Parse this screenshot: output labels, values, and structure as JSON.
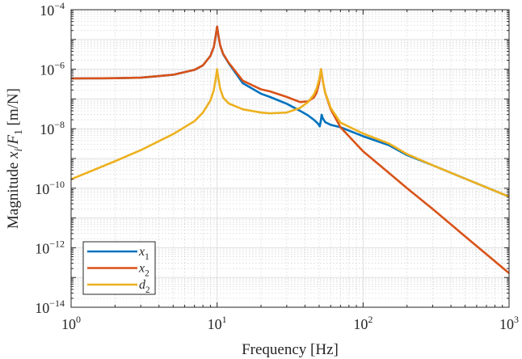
{
  "chart_data": {
    "type": "line",
    "title": "",
    "xlabel": "Frequency [Hz]",
    "ylabel": "Magnitude x_i/F_1 [m/N]",
    "xscale": "log",
    "yscale": "log",
    "xlim": [
      1,
      1000
    ],
    "ylim": [
      1e-14,
      0.0001
    ],
    "grid": "major and minor",
    "legend_position": "bottom-left",
    "x_tick_exponents": [
      "0",
      "1",
      "2",
      "3"
    ],
    "y_tick_exponents": [
      "-14",
      "-12",
      "-10",
      "-8",
      "-6",
      "-4"
    ],
    "tick_base": "10",
    "series": [
      {
        "name": "x_1",
        "color": "#0072BD",
        "x": [
          1,
          2,
          3,
          5,
          7,
          8,
          9,
          9.5,
          9.8,
          10,
          10.2,
          10.5,
          11,
          12,
          15,
          20,
          23,
          30,
          37,
          42,
          46,
          49,
          50.5,
          51.5,
          52,
          53,
          55,
          60,
          70,
          100,
          150,
          200,
          300,
          500,
          1000
        ],
        "y": [
          4.9e-07,
          5e-07,
          5.2e-07,
          6.5e-07,
          9.5e-07,
          1.35e-06,
          2.8e-06,
          5.6e-06,
          1.4e-05,
          2.7e-05,
          1.4e-05,
          6.3e-06,
          3.2e-06,
          1.6e-06,
          3.4e-07,
          1.5e-07,
          1.17e-07,
          6.9e-08,
          4e-08,
          2.8e-08,
          2e-08,
          1.5e-08,
          1.2e-08,
          2e-08,
          2.95e-08,
          2.24e-08,
          1.66e-08,
          1.35e-08,
          1.12e-08,
          5.6e-09,
          2.8e-09,
          1.3e-09,
          5.9e-10,
          2.1e-10,
          5.2e-11
        ]
      },
      {
        "name": "x_2",
        "color": "#D95319",
        "x": [
          1,
          2,
          3,
          5,
          7,
          8,
          9,
          9.5,
          9.8,
          10,
          10.2,
          10.5,
          11,
          12,
          15,
          20,
          23,
          30,
          37,
          42,
          46,
          48,
          50,
          51.5,
          53,
          55,
          60,
          70,
          100,
          150,
          200,
          300,
          500,
          1000
        ],
        "y": [
          4.9e-07,
          5e-07,
          5.2e-07,
          6.5e-07,
          9.5e-07,
          1.35e-06,
          2.8e-06,
          5.6e-06,
          1.4e-05,
          2.7e-05,
          1.4e-05,
          6.3e-06,
          3.3e-06,
          1.66e-06,
          4.1e-07,
          2.1e-07,
          1.8e-07,
          1.17e-07,
          7.9e-08,
          8.3e-08,
          1.12e-07,
          1.6e-07,
          3.5e-07,
          1e-06,
          4e-07,
          1.6e-07,
          4.5e-08,
          1.12e-08,
          1.74e-09,
          3.3e-10,
          1e-10,
          2e-11,
          2.4e-12,
          1.4e-13
        ]
      },
      {
        "name": "d_2",
        "color": "#EDB120",
        "x": [
          1,
          2,
          3,
          5,
          7,
          8,
          9,
          9.5,
          9.8,
          10,
          10.2,
          10.5,
          11,
          12,
          15,
          20,
          23,
          30,
          37,
          42,
          46,
          48,
          50,
          51.5,
          53,
          55,
          60,
          70,
          100,
          150,
          200,
          300,
          500,
          1000
        ],
        "y": [
          2e-10,
          8.1e-10,
          1.9e-09,
          6.6e-09,
          1.8e-08,
          3.5e-08,
          8.9e-08,
          2e-07,
          5e-07,
          1e-06,
          5e-07,
          2.2e-07,
          1.12e-07,
          7.1e-08,
          4.5e-08,
          3.5e-08,
          3.3e-08,
          3.5e-08,
          5e-08,
          7.9e-08,
          1.4e-07,
          2.2e-07,
          4.5e-07,
          1e-06,
          4e-07,
          1.66e-07,
          5e-08,
          1.6e-08,
          6.9e-09,
          3.2e-09,
          1.4e-09,
          5.9e-10,
          2.1e-10,
          5.2e-11
        ]
      }
    ]
  }
}
